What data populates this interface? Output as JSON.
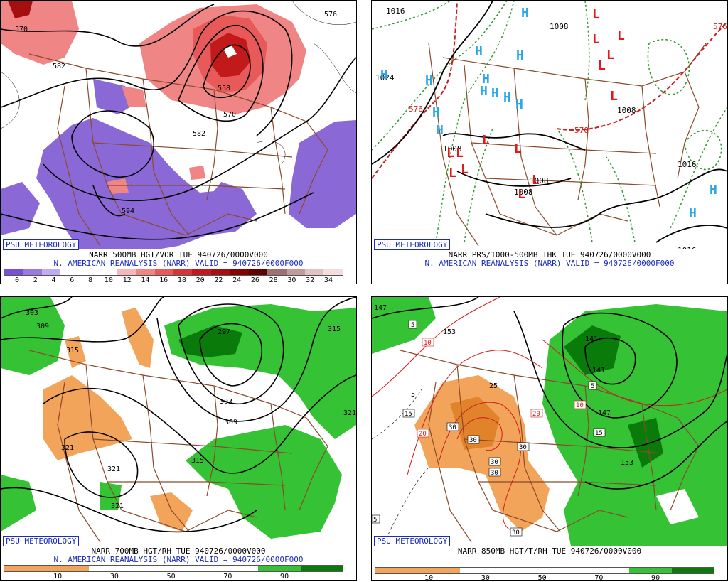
{
  "brand": "PSU METEOROLOGY",
  "panels": [
    {
      "caption": "NARR 500MB HGT/VOR TUE 940726/0000V000",
      "subcaption": "N. AMERICAN REANALYSIS (NARR) VALID = 940726/0000F000",
      "colorbar": {
        "ticks": [
          "0",
          "2",
          "4",
          "6",
          "8",
          "10",
          "12",
          "14",
          "16",
          "18",
          "20",
          "22",
          "24",
          "26",
          "28",
          "30",
          "32",
          "34"
        ],
        "colors": [
          "#7a4fd0",
          "#9b7ae0",
          "#c0acf0",
          "#ffffff",
          "#ffffff",
          "#ffffff",
          "#f6b8b8",
          "#f08585",
          "#e85a5a",
          "#d63535",
          "#c21a1a",
          "#a50f0f",
          "#850000",
          "#5e0000",
          "#a07070",
          "#c29a9a",
          "#e0c4c4",
          "#f2dede"
        ]
      },
      "labels": {
        "h582": "582",
        "h570a": "570",
        "h558": "558",
        "h570b": "570",
        "h582b": "582",
        "h594": "594",
        "h576": "576"
      }
    },
    {
      "caption": "NARR PRS/1000-500MB THK TUE 940726/0000V000",
      "subcaption": "N. AMERICAN REANALYSIS (NARR) VALID = 940726/0000F000",
      "labels": {
        "p1016a": "1016",
        "p1024": "1024",
        "p1008a": "1008",
        "p1008b": "1008",
        "p1016b": "1016",
        "p1016c": "1016",
        "t570": "570",
        "t576": "576",
        "t576b": "576",
        "p1008c": "1008",
        "p1008d": "1008",
        "p1008e": "1008"
      }
    },
    {
      "caption": "NARR 700MB HGT/RH TUE 940726/0000V000",
      "subcaption": "N. AMERICAN REANALYSIS (NARR) VALID = 940726/0000F000",
      "colorbar": {
        "ticks": [
          "10",
          "30",
          "50",
          "70",
          "90"
        ],
        "colors": [
          "#f2a45a",
          "#f2a45a",
          "#ffffff",
          "#ffffff",
          "#ffffff",
          "#ffffff",
          "#35c335",
          "#0a7a0a"
        ]
      },
      "labels": {
        "h303": "303",
        "h309a": "309",
        "h315a": "315",
        "h297": "297",
        "h303b": "303",
        "h309b": "309",
        "h315b": "315",
        "h321a": "321",
        "h321b": "321",
        "h321c": "321",
        "h315c": "315",
        "h321d": "321"
      }
    },
    {
      "caption": "NARR 850MB HGT/T/RH TUE 940726/0000V000",
      "subcaption": "",
      "colorbar": {
        "ticks": [
          "10",
          "30",
          "50",
          "70",
          "90"
        ],
        "colors": [
          "#f2a45a",
          "#f2a45a",
          "#ffffff",
          "#ffffff",
          "#ffffff",
          "#ffffff",
          "#35c335",
          "#0a7a0a"
        ]
      },
      "labels": {
        "h147": "147",
        "h153a": "153",
        "h141a": "141",
        "h141b": "141",
        "h147b": "147",
        "h153b": "153",
        "t5a": "5",
        "t10a": "10",
        "t15a": "15",
        "t20a": "20",
        "t20b": "20",
        "t25": "25",
        "t30a": "30",
        "t30b": "30",
        "t30c": "30",
        "t30d": "30",
        "t30e": "30",
        "t30f": "30",
        "t5b": "5",
        "t10b": "10",
        "t15b": "15",
        "t5c": "5",
        "t5d": "5",
        "t15c": "15"
      }
    }
  ],
  "colors": {
    "height": "#000000",
    "border": "#8b4a2b",
    "vort_pos": "#e85a5a",
    "vort_neg": "#8a68d6",
    "rh_moist": "#27b827",
    "rh_dry": "#f2a45a",
    "thickness": "#d11a1a",
    "pressure_green": "#2f9a2f",
    "high": "#2aa7e6",
    "low": "#e01a1a"
  },
  "symbols": {
    "high": "H",
    "low": "L"
  }
}
